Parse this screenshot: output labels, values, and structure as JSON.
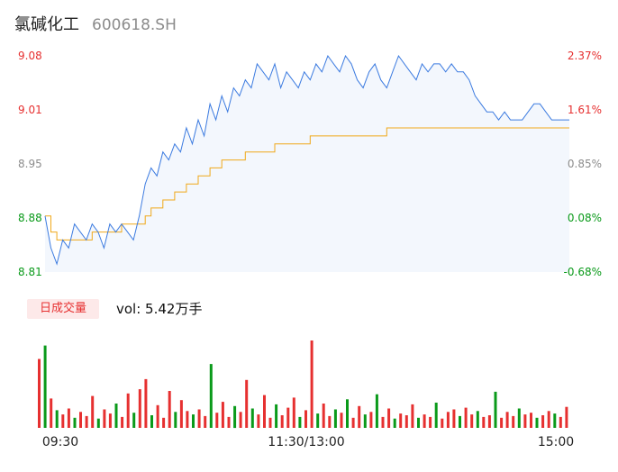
{
  "header": {
    "name": "氯碱化工",
    "code": "600618.SH"
  },
  "volume_panel": {
    "badge": "日成交量",
    "vol_text": "vol: 5.42万手"
  },
  "colors": {
    "up": "#e63030",
    "down": "#0a9a1a",
    "price_line": "#3c7be0",
    "avg_line": "#f0a81a",
    "neutral": "#8c8c8c"
  },
  "chart_data": {
    "type": "line",
    "price_axis": {
      "ylim": [
        8.81,
        9.08
      ],
      "ticks": [
        "9.08",
        "9.01",
        "8.95",
        "8.88",
        "8.81"
      ]
    },
    "pct_axis": {
      "ticks": [
        "2.37%",
        "1.61%",
        "0.85%",
        "0.08%",
        "-0.68%"
      ]
    },
    "x_ticks": [
      "09:30",
      "11:30/13:00",
      "15:00"
    ],
    "price_series": [
      8.88,
      8.84,
      8.82,
      8.85,
      8.84,
      8.87,
      8.86,
      8.85,
      8.87,
      8.86,
      8.84,
      8.87,
      8.86,
      8.87,
      8.86,
      8.85,
      8.88,
      8.92,
      8.94,
      8.93,
      8.96,
      8.95,
      8.97,
      8.96,
      8.99,
      8.97,
      9.0,
      8.98,
      9.02,
      9.0,
      9.03,
      9.01,
      9.04,
      9.03,
      9.05,
      9.04,
      9.07,
      9.06,
      9.05,
      9.07,
      9.04,
      9.06,
      9.05,
      9.04,
      9.06,
      9.05,
      9.07,
      9.06,
      9.08,
      9.07,
      9.06,
      9.08,
      9.07,
      9.05,
      9.04,
      9.06,
      9.07,
      9.05,
      9.04,
      9.06,
      9.08,
      9.07,
      9.06,
      9.05,
      9.07,
      9.06,
      9.07,
      9.07,
      9.06,
      9.07,
      9.06,
      9.06,
      9.05,
      9.03,
      9.02,
      9.01,
      9.01,
      9.0,
      9.01,
      9.0,
      9.0,
      9.0,
      9.01,
      9.02,
      9.02,
      9.01,
      9.0,
      9.0,
      9.0,
      9.0
    ],
    "avg_series": [
      8.88,
      8.86,
      8.85,
      8.85,
      8.85,
      8.85,
      8.85,
      8.85,
      8.86,
      8.86,
      8.86,
      8.86,
      8.86,
      8.87,
      8.87,
      8.87,
      8.87,
      8.88,
      8.89,
      8.89,
      8.9,
      8.9,
      8.91,
      8.91,
      8.92,
      8.92,
      8.93,
      8.93,
      8.94,
      8.94,
      8.95,
      8.95,
      8.95,
      8.95,
      8.96,
      8.96,
      8.96,
      8.96,
      8.96,
      8.97,
      8.97,
      8.97,
      8.97,
      8.97,
      8.97,
      8.98,
      8.98,
      8.98,
      8.98,
      8.98,
      8.98,
      8.98,
      8.98,
      8.98,
      8.98,
      8.98,
      8.98,
      8.98,
      8.99,
      8.99,
      8.99,
      8.99,
      8.99,
      8.99,
      8.99,
      8.99,
      8.99,
      8.99,
      8.99,
      8.99,
      8.99,
      8.99,
      8.99,
      8.99,
      8.99,
      8.99,
      8.99,
      8.99,
      8.99,
      8.99,
      8.99,
      8.99,
      8.99,
      8.99,
      8.99,
      8.99,
      8.99,
      8.99,
      8.99,
      8.99
    ],
    "volume_series": [
      {
        "v": 8.2,
        "up": true
      },
      {
        "v": 9.8,
        "up": false
      },
      {
        "v": 3.5,
        "up": true
      },
      {
        "v": 2.1,
        "up": false
      },
      {
        "v": 1.6,
        "up": true
      },
      {
        "v": 2.3,
        "up": true
      },
      {
        "v": 1.2,
        "up": false
      },
      {
        "v": 1.9,
        "up": true
      },
      {
        "v": 1.4,
        "up": true
      },
      {
        "v": 3.8,
        "up": true
      },
      {
        "v": 1.1,
        "up": false
      },
      {
        "v": 2.2,
        "up": true
      },
      {
        "v": 1.7,
        "up": true
      },
      {
        "v": 2.9,
        "up": false
      },
      {
        "v": 1.3,
        "up": true
      },
      {
        "v": 4.1,
        "up": true
      },
      {
        "v": 1.8,
        "up": false
      },
      {
        "v": 4.6,
        "up": true
      },
      {
        "v": 5.8,
        "up": true
      },
      {
        "v": 1.5,
        "up": false
      },
      {
        "v": 2.7,
        "up": true
      },
      {
        "v": 1.2,
        "up": true
      },
      {
        "v": 4.4,
        "up": true
      },
      {
        "v": 1.9,
        "up": false
      },
      {
        "v": 3.3,
        "up": true
      },
      {
        "v": 2.0,
        "up": true
      },
      {
        "v": 1.6,
        "up": false
      },
      {
        "v": 2.2,
        "up": true
      },
      {
        "v": 1.4,
        "up": true
      },
      {
        "v": 7.6,
        "up": false
      },
      {
        "v": 1.8,
        "up": true
      },
      {
        "v": 3.1,
        "up": true
      },
      {
        "v": 1.3,
        "up": true
      },
      {
        "v": 2.6,
        "up": false
      },
      {
        "v": 1.9,
        "up": true
      },
      {
        "v": 5.7,
        "up": true
      },
      {
        "v": 2.3,
        "up": false
      },
      {
        "v": 1.6,
        "up": true
      },
      {
        "v": 3.9,
        "up": true
      },
      {
        "v": 1.2,
        "up": true
      },
      {
        "v": 2.8,
        "up": false
      },
      {
        "v": 1.5,
        "up": true
      },
      {
        "v": 2.4,
        "up": true
      },
      {
        "v": 3.6,
        "up": true
      },
      {
        "v": 1.3,
        "up": false
      },
      {
        "v": 2.1,
        "up": true
      },
      {
        "v": 10.4,
        "up": true
      },
      {
        "v": 1.7,
        "up": false
      },
      {
        "v": 2.9,
        "up": true
      },
      {
        "v": 1.4,
        "up": true
      },
      {
        "v": 2.2,
        "up": false
      },
      {
        "v": 1.8,
        "up": true
      },
      {
        "v": 3.4,
        "up": false
      },
      {
        "v": 1.2,
        "up": true
      },
      {
        "v": 2.6,
        "up": true
      },
      {
        "v": 1.6,
        "up": false
      },
      {
        "v": 1.9,
        "up": true
      },
      {
        "v": 4.0,
        "up": false
      },
      {
        "v": 1.3,
        "up": true
      },
      {
        "v": 2.3,
        "up": true
      },
      {
        "v": 1.1,
        "up": false
      },
      {
        "v": 1.7,
        "up": true
      },
      {
        "v": 1.5,
        "up": true
      },
      {
        "v": 2.8,
        "up": true
      },
      {
        "v": 1.2,
        "up": false
      },
      {
        "v": 1.6,
        "up": true
      },
      {
        "v": 1.3,
        "up": true
      },
      {
        "v": 3.0,
        "up": false
      },
      {
        "v": 1.1,
        "up": true
      },
      {
        "v": 1.9,
        "up": true
      },
      {
        "v": 2.2,
        "up": true
      },
      {
        "v": 1.4,
        "up": false
      },
      {
        "v": 2.4,
        "up": true
      },
      {
        "v": 1.6,
        "up": true
      },
      {
        "v": 2.0,
        "up": false
      },
      {
        "v": 1.3,
        "up": true
      },
      {
        "v": 1.5,
        "up": true
      },
      {
        "v": 4.3,
        "up": false
      },
      {
        "v": 1.2,
        "up": true
      },
      {
        "v": 1.9,
        "up": true
      },
      {
        "v": 1.4,
        "up": true
      },
      {
        "v": 2.3,
        "up": false
      },
      {
        "v": 1.6,
        "up": true
      },
      {
        "v": 1.8,
        "up": true
      },
      {
        "v": 1.2,
        "up": false
      },
      {
        "v": 1.5,
        "up": true
      },
      {
        "v": 2.0,
        "up": true
      },
      {
        "v": 1.7,
        "up": false
      },
      {
        "v": 1.3,
        "up": true
      },
      {
        "v": 2.5,
        "up": true
      }
    ]
  }
}
